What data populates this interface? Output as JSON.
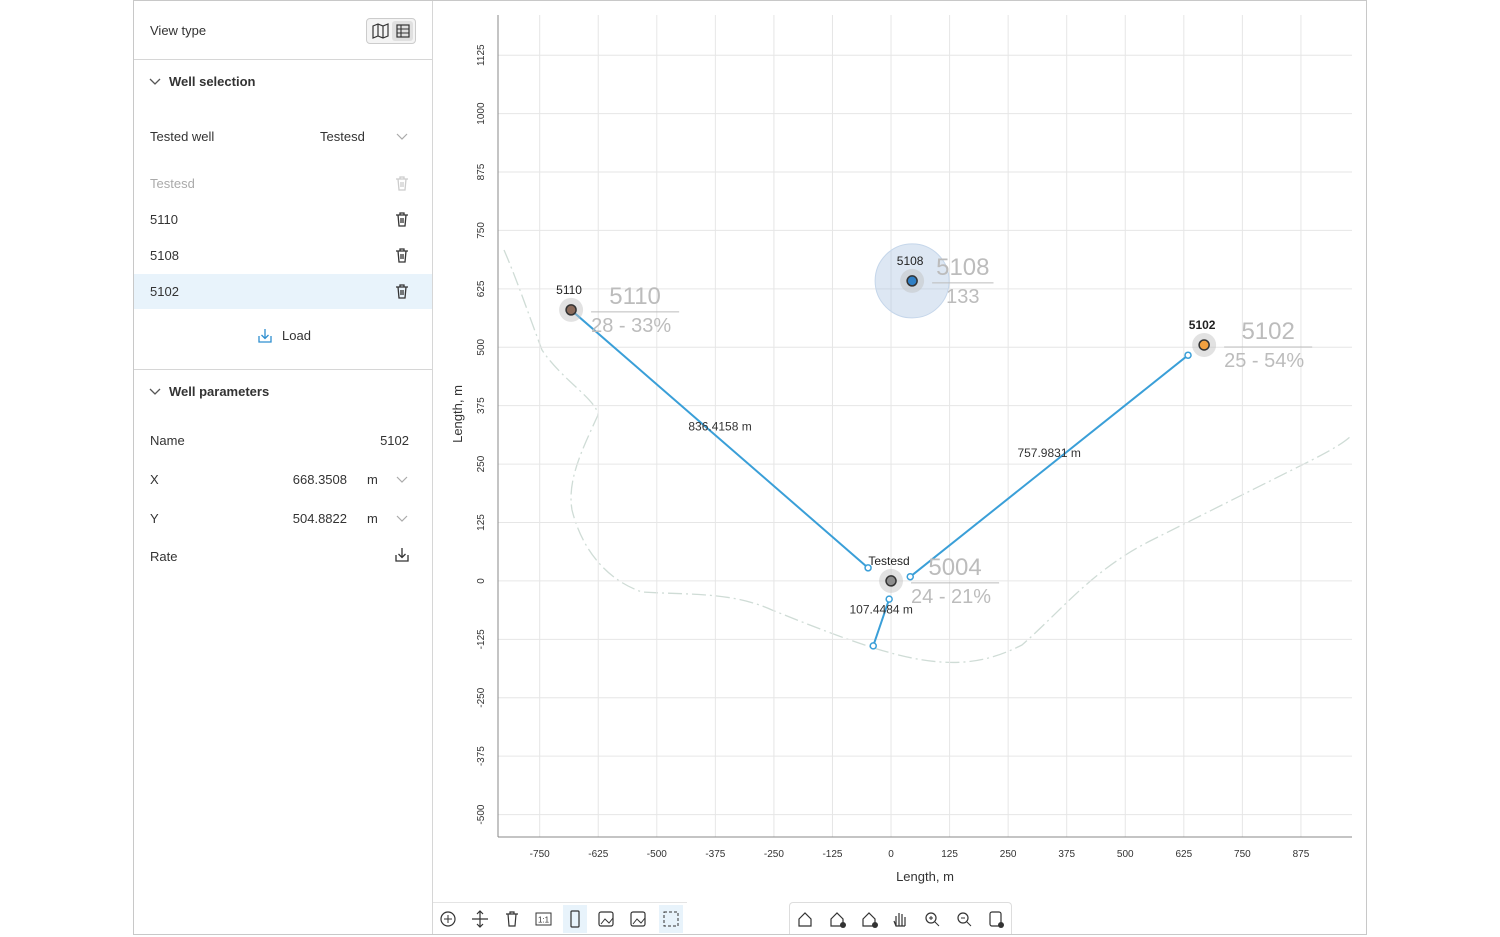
{
  "sidebar": {
    "view_type_label": "View type",
    "well_selection": {
      "title": "Well selection",
      "tested_well_label": "Tested well",
      "tested_well_value": "Testesd",
      "wells": [
        "Testesd",
        "5110",
        "5108",
        "5102"
      ],
      "load_button": "Load"
    },
    "well_parameters": {
      "title": "Well parameters",
      "name_label": "Name",
      "name_value": "5102",
      "x_label": "X",
      "x_value": "668.3508",
      "x_unit": "m",
      "y_label": "Y",
      "y_value": "504.8822",
      "y_unit": "m",
      "rate_label": "Rate"
    }
  },
  "chart_data": {
    "type": "scatter",
    "xlabel": "Length, m",
    "ylabel": "Length, m",
    "xlim": [
      -839,
      984
    ],
    "ylim": [
      -548,
      1211
    ],
    "xticks": [
      -750,
      -625,
      -500,
      -375,
      -250,
      -125,
      0,
      125,
      250,
      375,
      500,
      625,
      750,
      875
    ],
    "yticks": [
      -500,
      -375,
      -250,
      -125,
      0,
      125,
      250,
      375,
      500,
      625,
      750,
      875,
      1000,
      1125
    ],
    "grid": true,
    "wells": [
      {
        "name": "5110",
        "code": "5110",
        "stats": "28 - 33%",
        "x": -683,
        "y": 580,
        "color": "#8a6a5a"
      },
      {
        "name": "5108",
        "code": "5108",
        "stats": "133",
        "x": 45,
        "y": 642,
        "color": "#2f7fc4",
        "halo": true
      },
      {
        "name": "5102",
        "code": "5102",
        "stats": "25 - 54%",
        "x": 668.3508,
        "y": 504.8822,
        "color": "#f0a040",
        "bold": true
      },
      {
        "name": "Testesd",
        "code": "5004",
        "stats": "24 - 21%",
        "x": 0,
        "y": 0,
        "color": "#8c8c8c"
      }
    ],
    "measurements": [
      {
        "label": "836.4158 m",
        "x": [
          -681,
          -49
        ],
        "y": [
          578,
          28
        ]
      },
      {
        "label": "757.9831 m",
        "x": [
          41,
          634
        ],
        "y": [
          9,
          483
        ]
      },
      {
        "label": "107.4484 m",
        "x": [
          -4,
          -38
        ],
        "y": [
          -39,
          -139
        ]
      }
    ]
  }
}
